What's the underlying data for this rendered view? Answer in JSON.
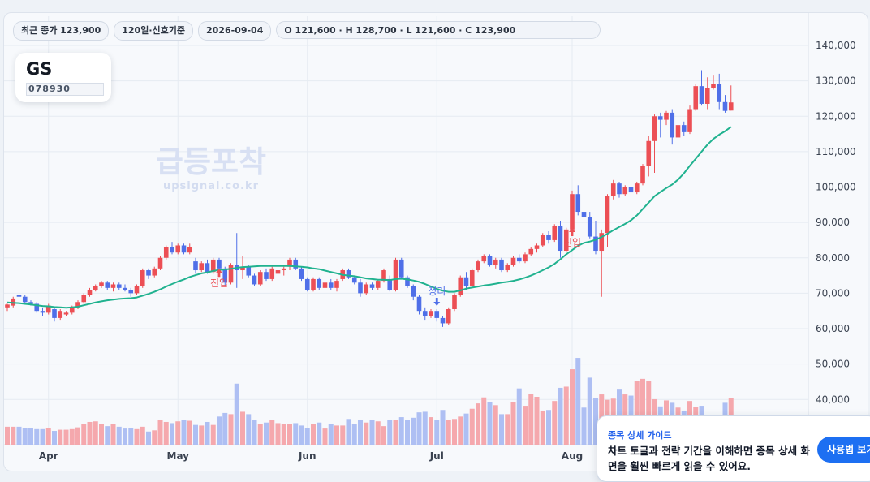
{
  "toolbar": {
    "close_chip": "최근 종가 123,900",
    "period_chip": "120일·신호기준",
    "date_chip": "2026-09-04",
    "ohlc_chip": "O 121,600 · H 128,700 · L 121,600 · C 123,900"
  },
  "ticker": {
    "name": "GS",
    "code": "078930"
  },
  "watermark": {
    "title": "급등포착",
    "site": "upsignal.co.kr"
  },
  "guide": {
    "title": "종목 상세 가이드",
    "body": "차트 토글과 전략 기간을 이해하면 종목 상세 화면을 훨씬 빠르게 읽을 수 있어요.",
    "button": "사용법 보기"
  },
  "colors": {
    "up": "#ec4f55",
    "down": "#4f6fe8",
    "ma": "#20b28f",
    "vol_up": "#f5a8ad",
    "vol_down": "#aebff3"
  },
  "chart_data": {
    "type": "candlestick",
    "y_ticks": [
      140000,
      130000,
      120000,
      110000,
      100000,
      90000,
      80000,
      70000,
      60000,
      50000,
      40000
    ],
    "y_tick_labels": [
      "140,000",
      "130,000",
      "120,000",
      "110,000",
      "100,000",
      "90,000",
      "80,000",
      "70,000",
      "60,000",
      "50,000",
      "40,000"
    ],
    "x_labels": [
      {
        "label": "Apr",
        "index": 7
      },
      {
        "label": "May",
        "index": 29
      },
      {
        "label": "Jun",
        "index": 51
      },
      {
        "label": "Jul",
        "index": 73
      },
      {
        "label": "Aug",
        "index": 96
      }
    ],
    "markers": [
      {
        "label": "진입",
        "index": 36,
        "type": "buy"
      },
      {
        "label": "정리",
        "index": 73,
        "type": "sell"
      },
      {
        "label": "진입",
        "index": 96,
        "type": "buy"
      }
    ],
    "ohlc": [
      [
        66000,
        67000,
        65000,
        66800
      ],
      [
        66500,
        69000,
        66000,
        68500
      ],
      [
        69500,
        70000,
        68000,
        69000
      ],
      [
        69000,
        69500,
        67000,
        67500
      ],
      [
        67500,
        68000,
        66500,
        67000
      ],
      [
        67000,
        67500,
        64500,
        65000
      ],
      [
        65000,
        66000,
        63500,
        64500
      ],
      [
        64500,
        67000,
        64000,
        66500
      ],
      [
        65500,
        66000,
        62000,
        63000
      ],
      [
        63000,
        65500,
        62500,
        65000
      ],
      [
        64000,
        65000,
        63500,
        64500
      ],
      [
        64500,
        66500,
        64000,
        66000
      ],
      [
        66000,
        68000,
        65500,
        67500
      ],
      [
        67500,
        70000,
        67000,
        69500
      ],
      [
        69500,
        71500,
        69000,
        71000
      ],
      [
        71000,
        72500,
        70500,
        72000
      ],
      [
        72000,
        73500,
        71500,
        73000
      ],
      [
        73000,
        73500,
        71000,
        71500
      ],
      [
        71500,
        73000,
        70500,
        72500
      ],
      [
        72500,
        73000,
        71000,
        71500
      ],
      [
        71500,
        72500,
        70500,
        71000
      ],
      [
        71000,
        71500,
        69000,
        70000
      ],
      [
        70000,
        72500,
        69500,
        72000
      ],
      [
        72000,
        77000,
        71500,
        76500
      ],
      [
        76500,
        77000,
        74000,
        75000
      ],
      [
        75000,
        77500,
        74500,
        77000
      ],
      [
        77000,
        80500,
        76500,
        80000
      ],
      [
        80000,
        83500,
        79500,
        83000
      ],
      [
        83000,
        84500,
        81000,
        81500
      ],
      [
        81500,
        84000,
        81000,
        83500
      ],
      [
        83500,
        84000,
        81000,
        81500
      ],
      [
        81500,
        84000,
        81000,
        83000
      ],
      [
        79000,
        80000,
        75500,
        76500
      ],
      [
        76500,
        79000,
        76000,
        78500
      ],
      [
        78500,
        79500,
        75500,
        76000
      ],
      [
        76000,
        80000,
        75500,
        79500
      ],
      [
        79500,
        80000,
        76000,
        77000
      ],
      [
        77000,
        77500,
        72000,
        73000
      ],
      [
        73000,
        78500,
        72500,
        78000
      ],
      [
        78000,
        87000,
        71500,
        76500
      ],
      [
        76500,
        80500,
        74000,
        77500
      ],
      [
        77500,
        78000,
        74500,
        75000
      ],
      [
        75000,
        75500,
        72000,
        72500
      ],
      [
        72500,
        76500,
        72000,
        76000
      ],
      [
        76000,
        77000,
        73500,
        74000
      ],
      [
        74000,
        77500,
        73500,
        77000
      ],
      [
        75500,
        77000,
        73000,
        76500
      ],
      [
        76500,
        77500,
        75000,
        77000
      ],
      [
        77500,
        80000,
        76500,
        79500
      ],
      [
        79500,
        80000,
        76500,
        77000
      ],
      [
        77000,
        77500,
        73500,
        74000
      ],
      [
        74000,
        74500,
        70500,
        71000
      ],
      [
        71000,
        74500,
        70500,
        74000
      ],
      [
        74000,
        74500,
        71000,
        71500
      ],
      [
        71500,
        73500,
        70500,
        73000
      ],
      [
        73000,
        74000,
        71000,
        71500
      ],
      [
        71500,
        74000,
        70500,
        73500
      ],
      [
        74000,
        77000,
        73500,
        76500
      ],
      [
        76500,
        77000,
        74000,
        74500
      ],
      [
        74500,
        75000,
        72500,
        73000
      ],
      [
        73000,
        74000,
        69000,
        70000
      ],
      [
        70000,
        73000,
        69500,
        72500
      ],
      [
        72500,
        73000,
        71000,
        71500
      ],
      [
        71500,
        74000,
        71000,
        73500
      ],
      [
        73500,
        77000,
        73000,
        76500
      ],
      [
        74000,
        75000,
        70500,
        71000
      ],
      [
        71000,
        80000,
        70500,
        79500
      ],
      [
        79500,
        80000,
        74000,
        74500
      ],
      [
        74500,
        75000,
        71500,
        72000
      ],
      [
        72000,
        72500,
        68000,
        69000
      ],
      [
        69000,
        69500,
        64000,
        65000
      ],
      [
        65000,
        66000,
        62500,
        63500
      ],
      [
        63500,
        65500,
        63000,
        65000
      ],
      [
        65000,
        65500,
        62000,
        63000
      ],
      [
        63000,
        63500,
        60500,
        61500
      ],
      [
        61500,
        66000,
        61000,
        65500
      ],
      [
        65500,
        70000,
        65000,
        69500
      ],
      [
        69500,
        75000,
        69000,
        74500
      ],
      [
        74500,
        76000,
        71000,
        72000
      ],
      [
        72000,
        77000,
        71500,
        76500
      ],
      [
        76500,
        79500,
        76000,
        79000
      ],
      [
        79000,
        81000,
        78500,
        80500
      ],
      [
        80500,
        81000,
        77500,
        78000
      ],
      [
        78000,
        80000,
        77000,
        79500
      ],
      [
        79500,
        80000,
        76000,
        76500
      ],
      [
        76500,
        78500,
        76000,
        78000
      ],
      [
        78000,
        80500,
        77500,
        80000
      ],
      [
        80000,
        81000,
        78500,
        79000
      ],
      [
        79000,
        81500,
        78500,
        81000
      ],
      [
        81000,
        83000,
        80500,
        82500
      ],
      [
        82500,
        84000,
        81500,
        83500
      ],
      [
        83500,
        87000,
        83000,
        86500
      ],
      [
        86500,
        87500,
        84000,
        85000
      ],
      [
        85000,
        89500,
        84500,
        89000
      ],
      [
        89000,
        90500,
        80000,
        82000
      ],
      [
        82000,
        88500,
        81500,
        88000
      ],
      [
        88000,
        99000,
        87500,
        98000
      ],
      [
        98000,
        100500,
        92000,
        93000
      ],
      [
        93000,
        98500,
        91000,
        91500
      ],
      [
        91500,
        93000,
        85500,
        86000
      ],
      [
        86000,
        90500,
        81000,
        82000
      ],
      [
        82000,
        88000,
        69000,
        87000
      ],
      [
        87000,
        98000,
        83000,
        97500
      ],
      [
        97500,
        102000,
        96500,
        101000
      ],
      [
        101000,
        101500,
        97000,
        98000
      ],
      [
        98000,
        100500,
        97500,
        100000
      ],
      [
        100000,
        102000,
        97500,
        98500
      ],
      [
        98500,
        101500,
        98000,
        101000
      ],
      [
        101000,
        106500,
        100500,
        106000
      ],
      [
        106000,
        114500,
        103000,
        113000
      ],
      [
        113000,
        120500,
        104000,
        120000
      ],
      [
        120000,
        121000,
        114000,
        119000
      ],
      [
        119000,
        121500,
        117500,
        121000
      ],
      [
        121000,
        122000,
        112000,
        114000
      ],
      [
        114000,
        118000,
        112500,
        117500
      ],
      [
        117500,
        118500,
        114500,
        115500
      ],
      [
        115500,
        123000,
        115000,
        122000
      ],
      [
        122000,
        129000,
        121500,
        128500
      ],
      [
        128500,
        133000,
        123000,
        123500
      ],
      [
        123500,
        131000,
        122000,
        128000
      ],
      [
        128000,
        131500,
        127500,
        129000
      ],
      [
        129000,
        132000,
        122000,
        124000
      ],
      [
        124000,
        126000,
        121000,
        121500
      ],
      [
        121600,
        128700,
        121600,
        123900
      ]
    ],
    "ma20": [
      67400,
      67300,
      67200,
      67000,
      66800,
      66600,
      66400,
      66300,
      66100,
      66000,
      65900,
      66000,
      66200,
      66600,
      67000,
      67400,
      67700,
      68000,
      68200,
      68400,
      68500,
      68600,
      68800,
      69300,
      69800,
      70400,
      71100,
      71900,
      72600,
      73300,
      73900,
      74600,
      75100,
      75600,
      75900,
      76300,
      76600,
      76700,
      76900,
      77200,
      77400,
      77500,
      77600,
      77700,
      77700,
      77700,
      77700,
      77700,
      77700,
      77600,
      77500,
      77300,
      77000,
      76800,
      76400,
      76000,
      75600,
      75200,
      75000,
      74800,
      74500,
      74200,
      74000,
      73800,
      73800,
      73700,
      74000,
      74100,
      73900,
      73600,
      73200,
      72600,
      71900,
      71200,
      70700,
      70400,
      70400,
      70800,
      71300,
      71600,
      71900,
      72200,
      72400,
      72700,
      73000,
      73200,
      73500,
      73900,
      74400,
      75000,
      75700,
      76500,
      77300,
      78300,
      79600,
      81000,
      82200,
      83400,
      84200,
      84600,
      85100,
      85900,
      86800,
      87800,
      88700,
      89600,
      90600,
      92000,
      93800,
      95600,
      97400,
      98600,
      99700,
      100700,
      102100,
      103900,
      106000,
      108000,
      110000,
      112000,
      113600,
      114800,
      115800,
      117000
    ],
    "volume": [
      39000,
      39000,
      39000,
      38800,
      38800,
      38600,
      38600,
      38800,
      38300,
      38500,
      38500,
      38600,
      38900,
      39500,
      39800,
      39900,
      39400,
      39100,
      39400,
      39000,
      38700,
      38800,
      38600,
      39000,
      38200,
      38400,
      40200,
      39800,
      39600,
      39900,
      40200,
      40000,
      39300,
      39200,
      39800,
      39300,
      40700,
      41300,
      41100,
      46200,
      41500,
      41100,
      40100,
      39400,
      39700,
      40200,
      39600,
      39400,
      39500,
      39600,
      39200,
      38800,
      39400,
      39700,
      38700,
      39400,
      39200,
      39200,
      40300,
      39500,
      40200,
      39700,
      40100,
      39900,
      39100,
      40100,
      40200,
      40600,
      40100,
      40500,
      41400,
      41500,
      40600,
      40100,
      41800,
      40200,
      40300,
      40700,
      41200,
      42000,
      42900,
      43900,
      43100,
      42600,
      41100,
      41100,
      43100,
      45400,
      42500,
      44500,
      44000,
      41700,
      41800,
      43300,
      45500,
      45700,
      48600,
      50500,
      42200,
      47200,
      43800,
      44400,
      43500,
      43700,
      45200,
      44400,
      44200,
      46600,
      47000,
      46700,
      43600,
      42400,
      43400,
      43000,
      42200,
      41700,
      43300,
      42300,
      42500,
      40000,
      40700,
      40300,
      43000,
      43800
    ],
    "vol_min": 36000,
    "vol_max": 52000
  }
}
